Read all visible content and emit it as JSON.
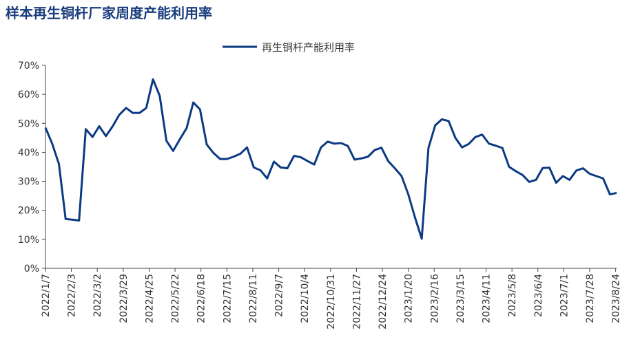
{
  "chart_data": {
    "type": "line",
    "title": "样本再生铜杆厂家周度产能利用率",
    "x": [
      "2022/1/7",
      "2022/1/14",
      "2022/1/21",
      "2022/1/28",
      "2022/2/4",
      "2022/2/11",
      "2022/2/18",
      "2022/2/25",
      "2022/3/4",
      "2022/3/11",
      "2022/3/18",
      "2022/3/25",
      "2022/4/1",
      "2022/4/8",
      "2022/4/15",
      "2022/4/22",
      "2022/4/29",
      "2022/5/6",
      "2022/5/13",
      "2022/5/20",
      "2022/5/27",
      "2022/6/3",
      "2022/6/10",
      "2022/6/17",
      "2022/6/24",
      "2022/7/1",
      "2022/7/8",
      "2022/7/15",
      "2022/7/22",
      "2022/7/29",
      "2022/8/5",
      "2022/8/12",
      "2022/8/19",
      "2022/8/26",
      "2022/9/2",
      "2022/9/9",
      "2022/9/16",
      "2022/9/23",
      "2022/9/30",
      "2022/10/7",
      "2022/10/14",
      "2022/10/21",
      "2022/10/28",
      "2022/11/4",
      "2022/11/11",
      "2022/11/18",
      "2022/11/25",
      "2022/12/2",
      "2022/12/9",
      "2022/12/16",
      "2022/12/23",
      "2022/12/30",
      "2023/1/6",
      "2023/1/13",
      "2023/1/20",
      "2023/1/27",
      "2023/2/3",
      "2023/2/10",
      "2023/2/17",
      "2023/2/24",
      "2023/3/3",
      "2023/3/10",
      "2023/3/17",
      "2023/3/24",
      "2023/3/31",
      "2023/4/7",
      "2023/4/14",
      "2023/4/21",
      "2023/4/28",
      "2023/5/5",
      "2023/5/12",
      "2023/5/19",
      "2023/5/26",
      "2023/6/2",
      "2023/6/9",
      "2023/6/16",
      "2023/6/23",
      "2023/6/30",
      "2023/7/7",
      "2023/7/14",
      "2023/7/21",
      "2023/7/28",
      "2023/8/4",
      "2023/8/11",
      "2023/8/18",
      "2023/8/25"
    ],
    "series": [
      {
        "name": "再生铜杆产能利用率",
        "color": "#0b3a82",
        "values": [
          48.5,
          43,
          36,
          17,
          16.8,
          16.5,
          48,
          45.3,
          49,
          45.6,
          49,
          53,
          55.3,
          53.6,
          53.6,
          55.3,
          65.2,
          59.5,
          44,
          40.5,
          44.5,
          48.3,
          57.2,
          54.8,
          42.7,
          39.8,
          37.7,
          37.7,
          38.5,
          39.5,
          41.7,
          34.8,
          33.8,
          31,
          36.8,
          34.8,
          34.5,
          38.8,
          38.3,
          37,
          35.8,
          41.7,
          43.7,
          43,
          43.2,
          42.2,
          37.5,
          37.9,
          38.5,
          40.8,
          41.6,
          37,
          34.5,
          31.8,
          25.5,
          17.5,
          10.2,
          41.5,
          49.3,
          51.4,
          50.8,
          45,
          41.7,
          42.9,
          45.3,
          46.1,
          43,
          42.3,
          41.5,
          35,
          33.5,
          32.2,
          29.8,
          30.5,
          34.6,
          34.7,
          29.5,
          31.8,
          30.5,
          33.7,
          34.5,
          32.6,
          31.8,
          31,
          25.5,
          26
        ]
      }
    ],
    "xlim": [
      "2022/1/7",
      "2023/8/25"
    ],
    "xticks": [
      "2022/1/7",
      "2022/2/3",
      "2022/3/2",
      "2022/3/29",
      "2022/4/25",
      "2022/5/22",
      "2022/6/18",
      "2022/7/15",
      "2022/8/11",
      "2022/9/7",
      "2022/10/4",
      "2022/10/31",
      "2022/11/27",
      "2022/12/24",
      "2023/1/20",
      "2023/2/16",
      "2023/3/15",
      "2023/4/11",
      "2023/5/8",
      "2023/6/4",
      "2023/7/1",
      "2023/7/28",
      "2023/8/24"
    ],
    "ylim": [
      0,
      70
    ],
    "yticks": [
      {
        "value": 0,
        "label": "0%"
      },
      {
        "value": 10,
        "label": "10%"
      },
      {
        "value": 20,
        "label": "20%"
      },
      {
        "value": 30,
        "label": "30%"
      },
      {
        "value": 40,
        "label": "40%"
      },
      {
        "value": 50,
        "label": "50%"
      },
      {
        "value": 60,
        "label": "60%"
      },
      {
        "value": 70,
        "label": "70%"
      }
    ],
    "legend": "top"
  }
}
